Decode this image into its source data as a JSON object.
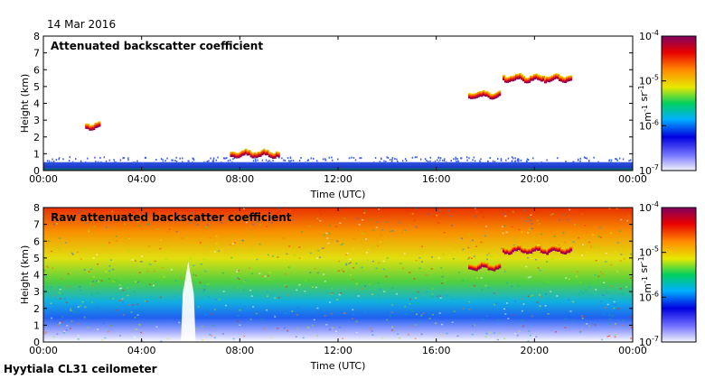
{
  "date": "14 Mar 2016",
  "footer": "Hyytiala CL31 ceilometer",
  "chart_data": [
    {
      "type": "heatmap",
      "title": "Attenuated backscatter coefficient",
      "xlabel": "Time (UTC)",
      "ylabel": "Height (km)",
      "x_ticks": [
        "00:00",
        "04:00",
        "08:00",
        "12:00",
        "16:00",
        "20:00",
        "00:00"
      ],
      "x_range_hours": [
        0,
        24
      ],
      "ylim": [
        0,
        8
      ],
      "y_ticks": [
        "0",
        "1",
        "2",
        "3",
        "4",
        "5",
        "6",
        "7",
        "8"
      ],
      "colorbar": {
        "ticks": [
          "10-7",
          "10-6",
          "10-5",
          "10-4"
        ],
        "label": "m-1 sr-1",
        "scale": "log"
      },
      "features": [
        {
          "kind": "boundary-layer",
          "start_h": 0,
          "end_h": 24,
          "top_km": 0.5
        },
        {
          "kind": "cloud",
          "start_h": 1.7,
          "end_h": 2.3,
          "height_km": 2.65
        },
        {
          "kind": "cloud",
          "start_h": 7.6,
          "end_h": 9.6,
          "height_km": 1.0
        },
        {
          "kind": "cloud",
          "start_h": 17.3,
          "end_h": 18.6,
          "height_km": 4.5
        },
        {
          "kind": "cloud",
          "start_h": 18.7,
          "end_h": 21.5,
          "height_km": 5.5
        }
      ]
    },
    {
      "type": "heatmap",
      "title": "Raw attenuated backscatter coefficient",
      "xlabel": "Time (UTC)",
      "ylabel": "Height (km)",
      "x_ticks": [
        "00:00",
        "04:00",
        "08:00",
        "12:00",
        "16:00",
        "20:00",
        "00:00"
      ],
      "x_range_hours": [
        0,
        24
      ],
      "ylim": [
        0,
        8
      ],
      "y_ticks": [
        "0",
        "1",
        "2",
        "3",
        "4",
        "5",
        "6",
        "7",
        "8"
      ],
      "colorbar": {
        "ticks": [
          "10-7",
          "10-6",
          "10-5",
          "10-4"
        ],
        "label": "m-1 sr-1",
        "scale": "log"
      },
      "features": [
        {
          "kind": "noise-gradient",
          "start_h": 0,
          "end_h": 24
        },
        {
          "kind": "low-signal",
          "start_h": 5.6,
          "end_h": 6.2,
          "top_km": 4.8
        },
        {
          "kind": "cloud",
          "start_h": 17.3,
          "end_h": 18.6,
          "height_km": 4.5
        },
        {
          "kind": "cloud",
          "start_h": 18.7,
          "end_h": 21.5,
          "height_km": 5.5
        }
      ]
    }
  ]
}
